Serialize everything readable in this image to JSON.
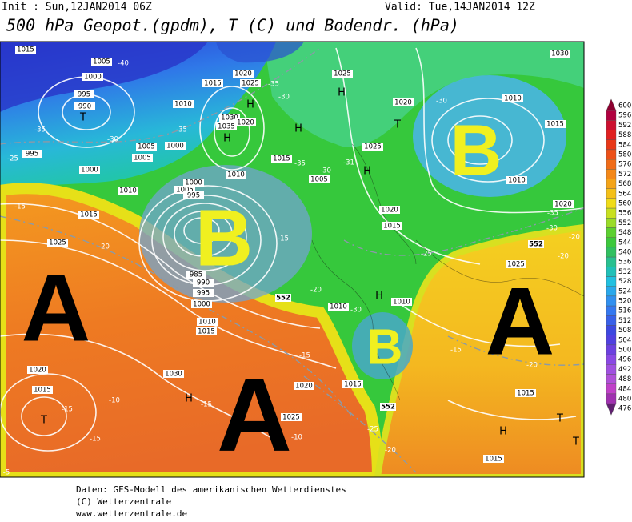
{
  "header": {
    "init": "Init : Sun,12JAN2014 06Z",
    "valid": "Valid: Tue,14JAN2014 12Z",
    "title": "500 hPa Geopot.(gpdm), T (C) und Bodendr. (hPa)"
  },
  "map": {
    "pressure_systems": [
      "B",
      "B",
      "B",
      "A",
      "A",
      "A"
    ],
    "isobar_labels": [
      1015,
      1005,
      1000,
      995,
      990,
      995,
      1000,
      1005,
      1005,
      1010,
      1015,
      1025,
      1010,
      1015,
      1020,
      1025,
      1030,
      1035,
      1020,
      1000,
      1010,
      1005,
      1000,
      995,
      1015,
      1025,
      1025,
      1005,
      1020,
      1020,
      1015,
      1010,
      1015,
      1010,
      1020,
      1030,
      1025,
      1010,
      1010,
      1010,
      1015,
      1000,
      995,
      990,
      985,
      1030,
      1020,
      1025,
      1015,
      1020,
      1015,
      1015,
      1015
    ],
    "temperature_labels": [
      -40,
      -35,
      -30,
      -25,
      -35,
      -30,
      -35,
      -35,
      -30,
      -31,
      -30,
      -35,
      -30,
      -25,
      -20,
      -20,
      -20,
      -15,
      -20,
      -15,
      -30,
      -15,
      -15,
      -10,
      -15,
      -15,
      -25,
      -20,
      -20,
      -15,
      -5,
      -10
    ],
    "height_labels": [
      552,
      552,
      552
    ],
    "highs": [
      "H",
      "H",
      "H",
      "H",
      "H",
      "H",
      "H",
      "H"
    ],
    "lows": [
      "T",
      "T",
      "T",
      "T",
      "T"
    ]
  },
  "legend": {
    "levels": [
      600,
      596,
      592,
      588,
      584,
      580,
      576,
      572,
      568,
      564,
      560,
      556,
      552,
      548,
      544,
      540,
      536,
      532,
      528,
      524,
      520,
      516,
      512,
      508,
      504,
      500,
      496,
      492,
      488,
      484,
      480,
      476
    ]
  },
  "footer": {
    "source": "Daten: GFS-Modell des amerikanischen Wetterdienstes",
    "copyright": "(C) Wetterzentrale",
    "url": "www.wetterzentrale.de"
  }
}
